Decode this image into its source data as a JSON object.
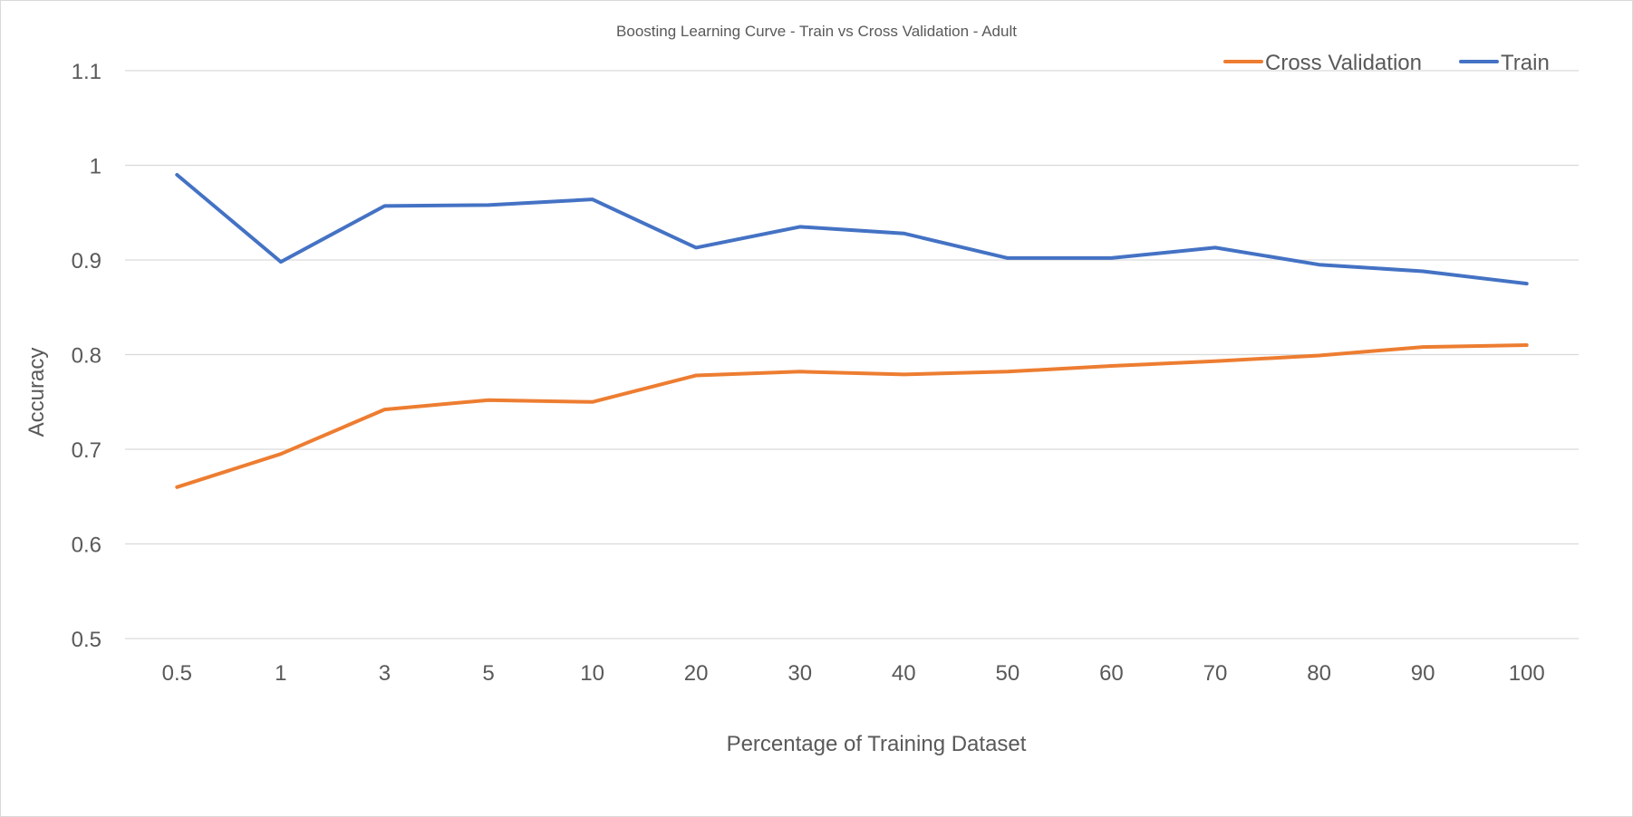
{
  "chart_data": {
    "type": "line",
    "title": "Boosting Learning Curve - Train vs Cross Validation - Adult",
    "xlabel": "Percentage of Training Dataset",
    "ylabel": "Accuracy",
    "categories": [
      "0.5",
      "1",
      "3",
      "5",
      "10",
      "20",
      "30",
      "40",
      "50",
      "60",
      "70",
      "80",
      "90",
      "100"
    ],
    "ylim": [
      0.5,
      1.1
    ],
    "yticks": [
      {
        "value": 1.1,
        "label": "1.1"
      },
      {
        "value": 1.0,
        "label": "1"
      },
      {
        "value": 0.9,
        "label": "0.9"
      },
      {
        "value": 0.8,
        "label": "0.8"
      },
      {
        "value": 0.7,
        "label": "0.7"
      },
      {
        "value": 0.6,
        "label": "0.6"
      },
      {
        "value": 0.5,
        "label": "0.5"
      }
    ],
    "grid": true,
    "legend_position": "top-right",
    "series": [
      {
        "name": "Cross Validation",
        "color": "#ED7D31",
        "values": [
          0.66,
          0.695,
          0.742,
          0.752,
          0.75,
          0.778,
          0.782,
          0.779,
          0.782,
          0.788,
          0.793,
          0.799,
          0.808,
          0.81
        ]
      },
      {
        "name": "Train",
        "color": "#4472C4",
        "values": [
          0.99,
          0.898,
          0.957,
          0.958,
          0.964,
          0.913,
          0.935,
          0.928,
          0.902,
          0.902,
          0.913,
          0.895,
          0.888,
          0.875
        ]
      }
    ]
  }
}
